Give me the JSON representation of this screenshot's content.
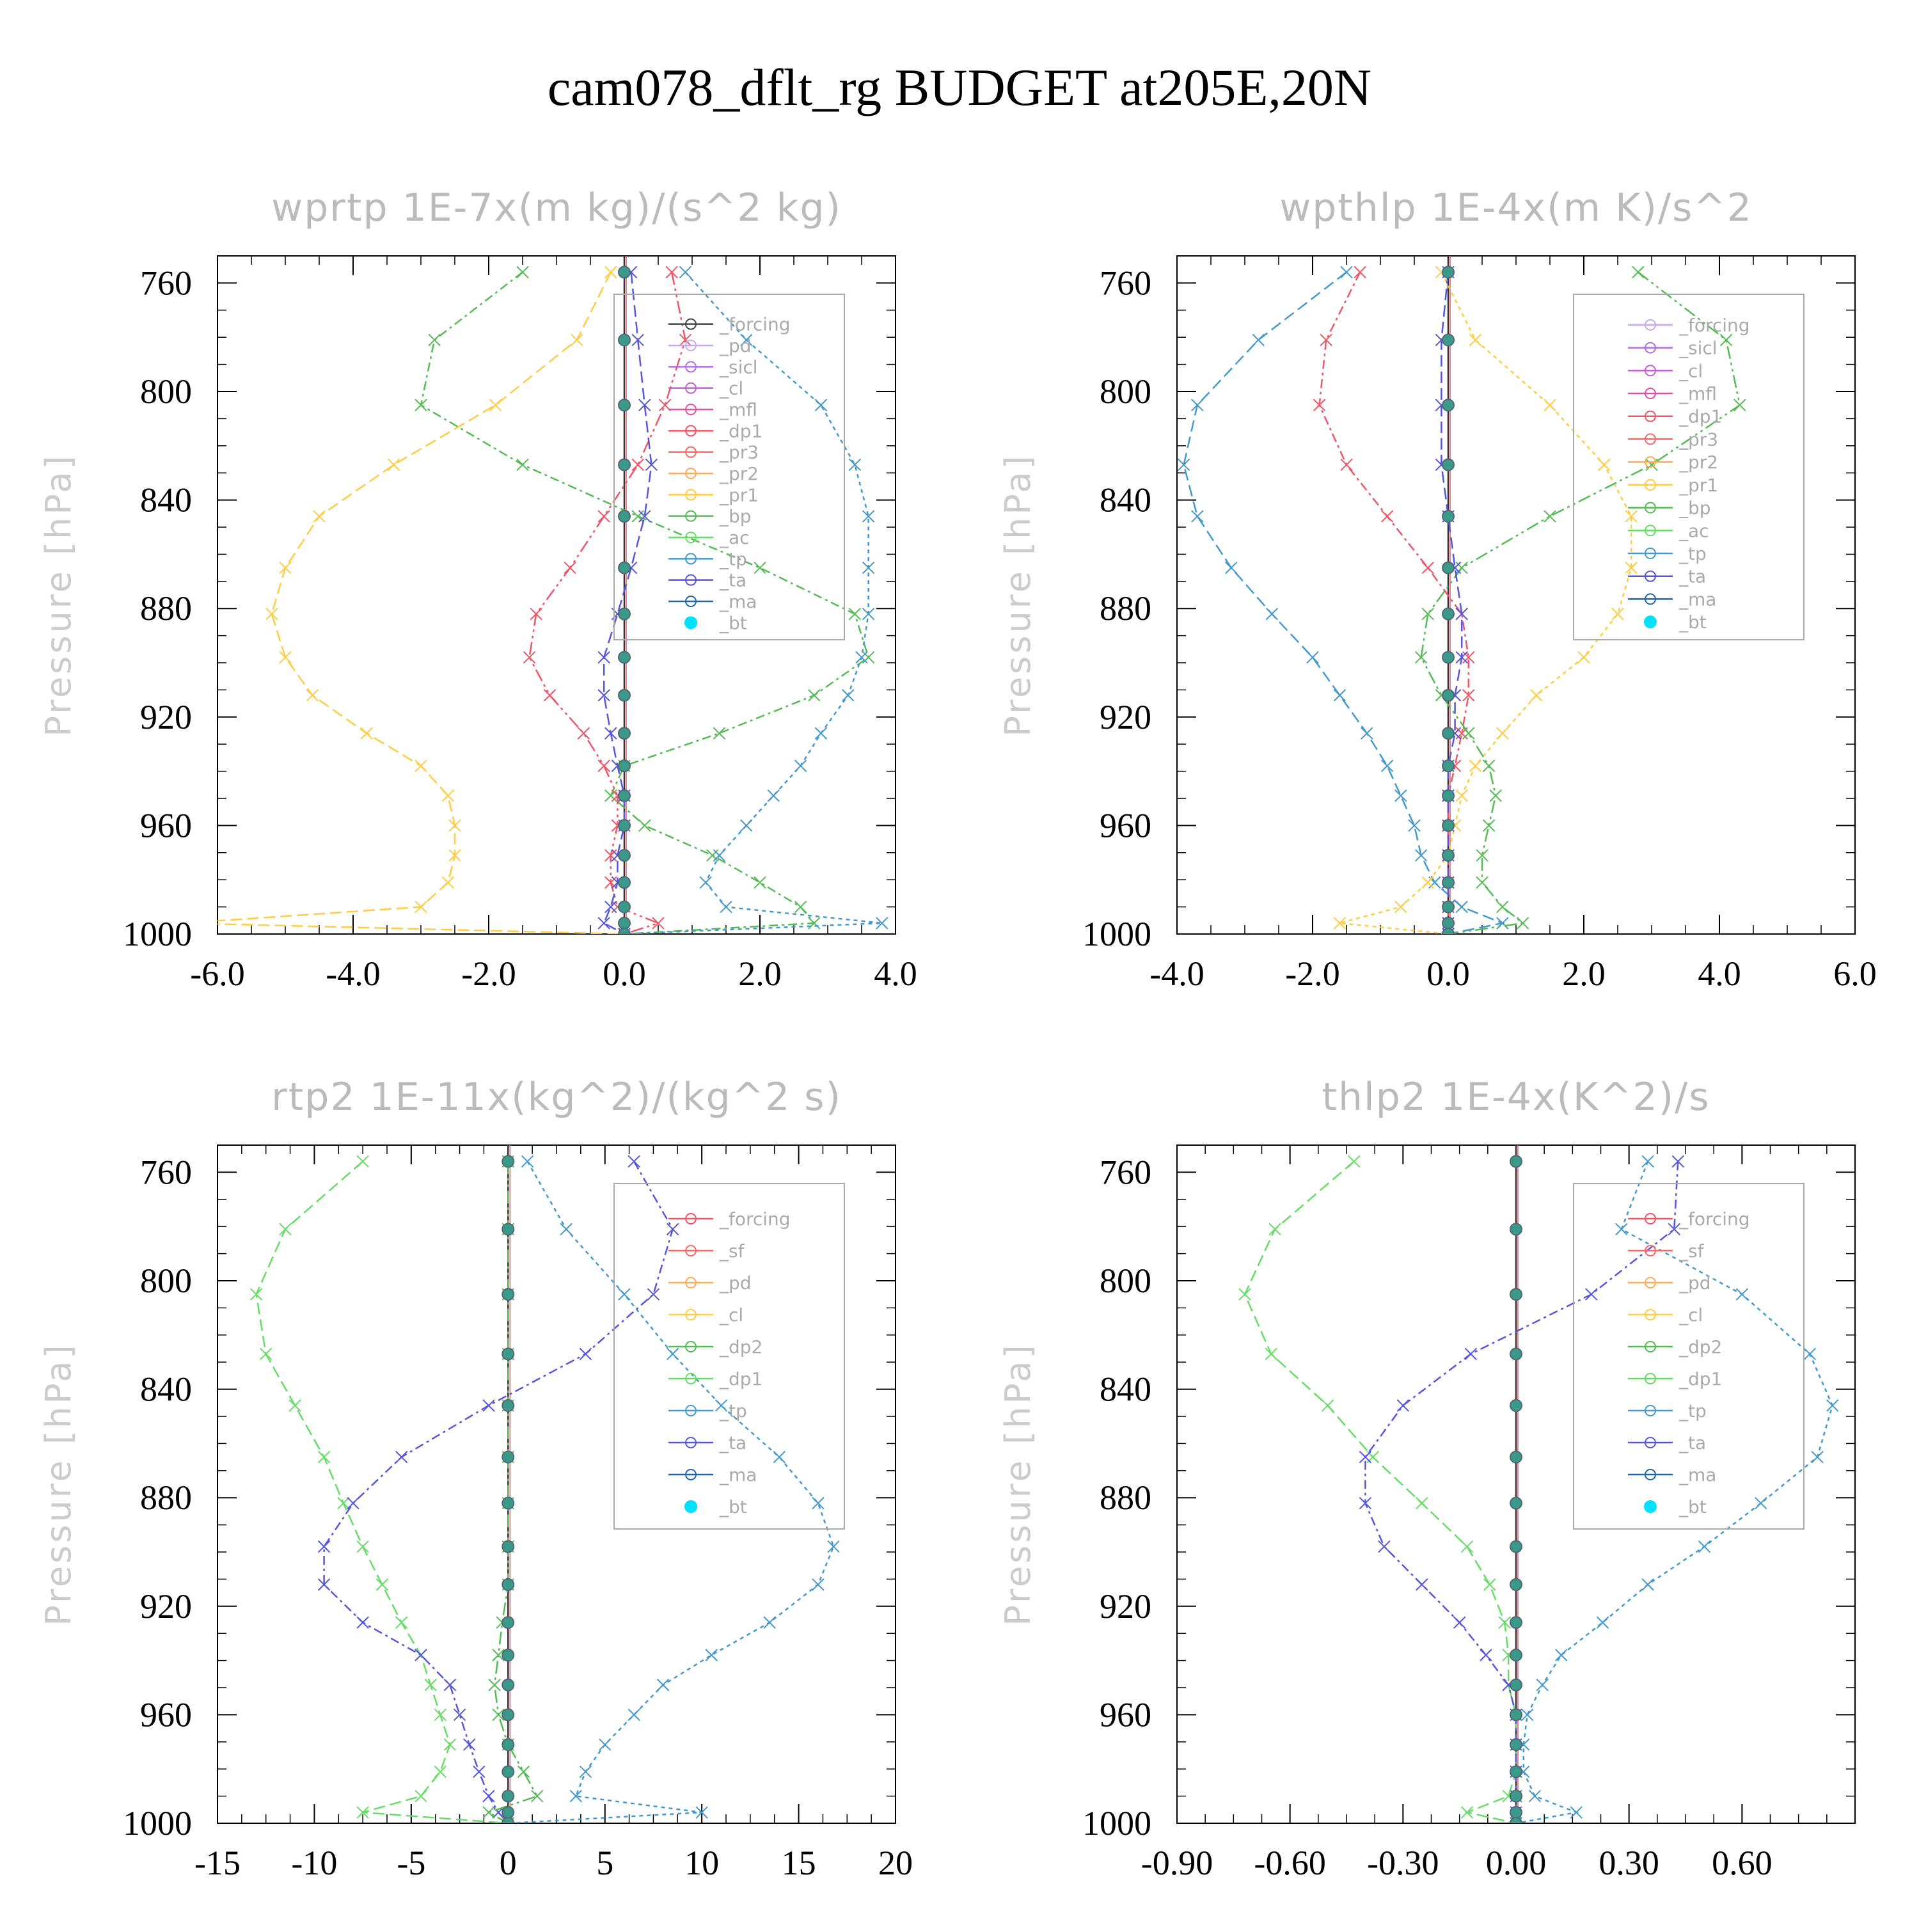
{
  "title": "cam078_dflt_rg  BUDGET at205E,20N",
  "chart_data": [
    {
      "type": "line",
      "title": "wprtp   1E-7x(m kg)/(s^2 kg)",
      "ylabel": "Pressure [hPa]",
      "xlabel": "",
      "xlim": [
        -6.0,
        4.0
      ],
      "ylim": [
        750,
        1000
      ],
      "y_inverted": true,
      "xticks": [
        "-6.0",
        "-4.0",
        "-2.0",
        "0.0",
        "2.0",
        "4.0"
      ],
      "yticks": [
        "760",
        "800",
        "840",
        "880",
        "920",
        "960",
        "1000"
      ],
      "legend": [
        "_forcing",
        "_pd",
        "_sicl",
        "_cl",
        "_mfl",
        "_dp1",
        "_pr3",
        "_pr2",
        "_pr1",
        "_bp",
        "_ac",
        "_tp",
        "_ta",
        "_ma",
        "_bt"
      ],
      "legend_colors": [
        "#444444",
        "#c8a8f0",
        "#b070e0",
        "#c060d0",
        "#e050a0",
        "#ee5566",
        "#ff6666",
        "#ffaa55",
        "#ffcc44",
        "#55bb55",
        "#66dd66",
        "#4499cc",
        "#5555dd",
        "#2266aa",
        "#00e0ff"
      ],
      "y": [
        756,
        781,
        805,
        827,
        846,
        865,
        882,
        898,
        912,
        926,
        938,
        949,
        960,
        971,
        981,
        990,
        996,
        1000
      ],
      "series": [
        {
          "name": "_pr1",
          "color": "#ffcc44",
          "values": [
            -0.2,
            -0.7,
            -1.9,
            -3.4,
            -4.5,
            -5.0,
            -5.2,
            -5.0,
            -4.6,
            -3.8,
            -3.0,
            -2.6,
            -2.5,
            -2.5,
            -2.6,
            -3.0,
            -6.5,
            0.0
          ]
        },
        {
          "name": "_bp",
          "color": "#55bb55",
          "values": [
            -1.5,
            -2.8,
            -3.0,
            -1.5,
            0.2,
            2.0,
            3.4,
            3.6,
            2.8,
            1.4,
            0.0,
            -0.2,
            0.3,
            1.3,
            2.0,
            2.6,
            2.8,
            0.0
          ]
        },
        {
          "name": "_tp",
          "color": "#4499cc",
          "values": [
            0.9,
            1.8,
            2.9,
            3.4,
            3.6,
            3.6,
            3.6,
            3.5,
            3.3,
            2.9,
            2.6,
            2.2,
            1.8,
            1.4,
            1.2,
            1.5,
            3.8,
            0.0
          ]
        },
        {
          "name": "_dp1",
          "color": "#ee5566",
          "values": [
            0.7,
            0.9,
            0.6,
            0.2,
            -0.3,
            -0.8,
            -1.3,
            -1.4,
            -1.1,
            -0.6,
            -0.3,
            -0.1,
            -0.1,
            -0.2,
            -0.2,
            -0.1,
            0.5,
            0.0
          ]
        },
        {
          "name": "_ta",
          "color": "#5555dd",
          "values": [
            0.1,
            0.2,
            0.3,
            0.4,
            0.3,
            0.1,
            -0.1,
            -0.3,
            -0.3,
            -0.2,
            -0.1,
            0.0,
            0.0,
            -0.1,
            -0.1,
            -0.2,
            -0.3,
            0.0
          ]
        },
        {
          "name": "_bt",
          "color": "#00e0ff",
          "values": [
            0,
            0,
            0,
            0,
            0,
            0,
            0,
            0,
            0,
            0,
            0,
            0,
            0,
            0,
            0,
            0,
            0,
            0
          ]
        }
      ]
    },
    {
      "type": "line",
      "title": "wpthlp   1E-4x(m K)/s^2",
      "ylabel": "Pressure [hPa]",
      "xlabel": "",
      "xlim": [
        -4.0,
        6.0
      ],
      "ylim": [
        750,
        1000
      ],
      "y_inverted": true,
      "xticks": [
        "-4.0",
        "-2.0",
        "0.0",
        "2.0",
        "4.0",
        "6.0"
      ],
      "yticks": [
        "760",
        "800",
        "840",
        "880",
        "920",
        "960",
        "1000"
      ],
      "legend": [
        "_forcing",
        "_sicl",
        "_cl",
        "_mfl",
        "_dp1",
        "_pr3",
        "_pr2",
        "_pr1",
        "_bp",
        "_ac",
        "_tp",
        "_ta",
        "_ma",
        "_bt"
      ],
      "legend_colors": [
        "#c8a8f0",
        "#b070e0",
        "#c060d0",
        "#e050a0",
        "#ee5566",
        "#ff6666",
        "#ffaa55",
        "#ffcc44",
        "#55bb55",
        "#66dd66",
        "#4499cc",
        "#5555dd",
        "#2266aa",
        "#00e0ff"
      ],
      "y": [
        756,
        781,
        805,
        827,
        846,
        865,
        882,
        898,
        912,
        926,
        938,
        949,
        960,
        971,
        981,
        990,
        996,
        1000
      ],
      "series": [
        {
          "name": "_tp",
          "color": "#4499cc",
          "values": [
            -1.5,
            -2.8,
            -3.7,
            -3.9,
            -3.7,
            -3.2,
            -2.6,
            -2.0,
            -1.6,
            -1.2,
            -0.9,
            -0.7,
            -0.5,
            -0.4,
            -0.2,
            0.2,
            0.8,
            0.0
          ]
        },
        {
          "name": "_dp1",
          "color": "#ee5566",
          "values": [
            -1.3,
            -1.8,
            -1.9,
            -1.5,
            -0.9,
            -0.3,
            0.2,
            0.3,
            0.3,
            0.2,
            0.1,
            0.0,
            0.0,
            0.0,
            0.0,
            0.0,
            0.0,
            0.0
          ]
        },
        {
          "name": "_pr1",
          "color": "#ffcc44",
          "values": [
            -0.1,
            0.4,
            1.5,
            2.3,
            2.7,
            2.7,
            2.5,
            2.0,
            1.3,
            0.8,
            0.4,
            0.2,
            0.1,
            0.0,
            -0.3,
            -0.7,
            -1.6,
            0.0
          ]
        },
        {
          "name": "_bp",
          "color": "#55bb55",
          "values": [
            2.8,
            4.1,
            4.3,
            3.0,
            1.5,
            0.2,
            -0.3,
            -0.4,
            -0.1,
            0.3,
            0.6,
            0.7,
            0.6,
            0.5,
            0.5,
            0.8,
            1.1,
            0.0
          ]
        },
        {
          "name": "_ta",
          "color": "#5555dd",
          "values": [
            0.0,
            -0.1,
            -0.1,
            -0.1,
            0.0,
            0.1,
            0.2,
            0.2,
            0.1,
            0.1,
            0.0,
            0.0,
            0.0,
            0.0,
            0.0,
            0.0,
            0.0,
            0.0
          ]
        },
        {
          "name": "_bt",
          "color": "#00e0ff",
          "values": [
            0,
            0,
            0,
            0,
            0,
            0,
            0,
            0,
            0,
            0,
            0,
            0,
            0,
            0,
            0,
            0,
            0,
            0
          ]
        }
      ]
    },
    {
      "type": "line",
      "title": "rtp2   1E-11x(kg^2)/(kg^2 s)",
      "ylabel": "Pressure [hPa]",
      "xlabel": "",
      "xlim": [
        -15,
        20
      ],
      "ylim": [
        750,
        1000
      ],
      "y_inverted": true,
      "xticks": [
        "-15",
        "-10",
        "-5",
        "0",
        "5",
        "10",
        "15",
        "20"
      ],
      "yticks": [
        "760",
        "800",
        "840",
        "880",
        "920",
        "960",
        "1000"
      ],
      "legend": [
        "_forcing",
        "_sf",
        "_pd",
        "_cl",
        "_dp2",
        "_dp1",
        "_tp",
        "_ta",
        "_ma",
        "_bt"
      ],
      "legend_colors": [
        "#ee5566",
        "#ff6666",
        "#ffaa55",
        "#ffcc44",
        "#55bb55",
        "#66dd66",
        "#4499cc",
        "#5555dd",
        "#2266aa",
        "#00e0ff"
      ],
      "y": [
        756,
        781,
        805,
        827,
        846,
        865,
        882,
        898,
        912,
        926,
        938,
        949,
        960,
        971,
        981,
        990,
        996,
        1000
      ],
      "series": [
        {
          "name": "_dp1",
          "color": "#66dd66",
          "values": [
            -7.5,
            -11.5,
            -13.0,
            -12.5,
            -11.0,
            -9.5,
            -8.5,
            -7.5,
            -6.5,
            -5.5,
            -4.5,
            -4.0,
            -3.5,
            -3.0,
            -3.5,
            -4.5,
            -7.5,
            0.0
          ]
        },
        {
          "name": "_ta",
          "color": "#5555dd",
          "values": [
            6.5,
            8.5,
            7.5,
            4.0,
            -1.0,
            -5.5,
            -8.0,
            -9.5,
            -9.5,
            -7.5,
            -4.5,
            -3.0,
            -2.5,
            -2.0,
            -1.5,
            -1.0,
            -0.5,
            0.0
          ]
        },
        {
          "name": "_tp",
          "color": "#4499cc",
          "values": [
            1.0,
            3.0,
            6.0,
            8.5,
            11.0,
            14.0,
            16.0,
            16.8,
            16.0,
            13.5,
            10.5,
            8.0,
            6.5,
            5.0,
            4.0,
            3.5,
            10.0,
            0.0
          ]
        },
        {
          "name": "_dp2",
          "color": "#55bb55",
          "values": [
            0,
            0,
            0,
            0,
            0,
            0,
            0,
            0,
            0,
            -0.3,
            -0.5,
            -0.7,
            -0.5,
            0.0,
            0.8,
            1.5,
            -1.0,
            0.0
          ]
        },
        {
          "name": "_bt",
          "color": "#00e0ff",
          "values": [
            0,
            0,
            0,
            0,
            0,
            0,
            0,
            0,
            0,
            0,
            0,
            0,
            0,
            0,
            0,
            0,
            0,
            0
          ]
        }
      ]
    },
    {
      "type": "line",
      "title": "thlp2   1E-4x(K^2)/s",
      "ylabel": "Pressure [hPa]",
      "xlabel": "",
      "xlim": [
        -0.9,
        0.9
      ],
      "ylim": [
        750,
        1000
      ],
      "y_inverted": true,
      "xticks": [
        "-0.90",
        "-0.60",
        "-0.30",
        "0.00",
        "0.30",
        "0.60"
      ],
      "yticks": [
        "760",
        "800",
        "840",
        "880",
        "920",
        "960",
        "1000"
      ],
      "legend": [
        "_forcing",
        "_sf",
        "_pd",
        "_cl",
        "_dp2",
        "_dp1",
        "_tp",
        "_ta",
        "_ma",
        "_bt"
      ],
      "legend_colors": [
        "#ee5566",
        "#ff6666",
        "#ffaa55",
        "#ffcc44",
        "#55bb55",
        "#66dd66",
        "#4499cc",
        "#5555dd",
        "#2266aa",
        "#00e0ff"
      ],
      "y": [
        756,
        781,
        805,
        827,
        846,
        865,
        882,
        898,
        912,
        926,
        938,
        949,
        960,
        971,
        981,
        990,
        996,
        1000
      ],
      "series": [
        {
          "name": "_dp1",
          "color": "#66dd66",
          "values": [
            -0.43,
            -0.64,
            -0.72,
            -0.65,
            -0.5,
            -0.38,
            -0.25,
            -0.13,
            -0.07,
            -0.03,
            -0.02,
            -0.02,
            0.0,
            0.0,
            0.0,
            -0.02,
            -0.13,
            0.0
          ]
        },
        {
          "name": "_ta",
          "color": "#5555dd",
          "values": [
            0.43,
            0.42,
            0.2,
            -0.12,
            -0.3,
            -0.4,
            -0.4,
            -0.35,
            -0.25,
            -0.15,
            -0.08,
            -0.02,
            0.0,
            0.0,
            0.0,
            0.0,
            0.0,
            0.0
          ]
        },
        {
          "name": "_tp",
          "color": "#4499cc",
          "values": [
            0.35,
            0.28,
            0.6,
            0.78,
            0.84,
            0.8,
            0.65,
            0.5,
            0.35,
            0.23,
            0.12,
            0.07,
            0.03,
            0.02,
            0.02,
            0.05,
            0.16,
            0.0
          ]
        },
        {
          "name": "_bt",
          "color": "#00e0ff",
          "values": [
            0,
            0,
            0,
            0,
            0,
            0,
            0,
            0,
            0,
            0,
            0,
            0,
            0,
            0,
            0,
            0,
            0,
            0
          ]
        }
      ]
    }
  ]
}
